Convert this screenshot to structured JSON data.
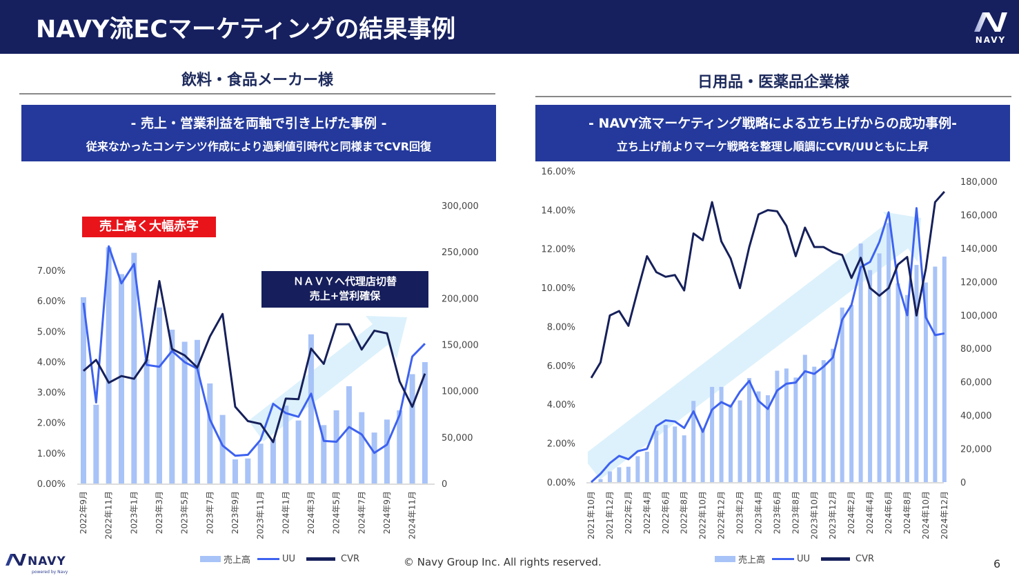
{
  "header": {
    "title": "NAVY流ECマーケティングの結果事例",
    "logo_text": "NAVY"
  },
  "left_panel": {
    "subtitle": "飲料・食品メーカー様",
    "band_title": "- 売上・営業利益を両軸で引き上げた事例 -",
    "band_text": "従来なかったコンテンツ作成により過剰値引時代と同様までCVR回復",
    "callout_red": "売上高く大幅赤字",
    "callout_navy_line1": "ＮＡＶＹへ代理店切替",
    "callout_navy_line2": "売上+営利確保"
  },
  "right_panel": {
    "subtitle": "日用品・医薬品企業様",
    "band_title": "- NAVY流マーケティング戦略による立ち上げからの成功事例-",
    "band_text": "立ち上げ前よりマーケ戦略を整理し順調にCVR/UUともに上昇"
  },
  "legend": {
    "sales": "売上高",
    "uu": "UU",
    "cvr": "CVR"
  },
  "footer": {
    "copyright": "© Navy Group Inc. All rights reserved.",
    "page": "6",
    "logo_text": "NAVY",
    "logo_sub": "powered by Navy"
  },
  "colors": {
    "header": "#16205f",
    "band": "#24399b",
    "bar": "#a8c3f7",
    "uu": "#3d62f0",
    "cvr": "#16205a",
    "arrow": "#d6eefc",
    "red": "#e8141a"
  },
  "chart_data": [
    {
      "type": "bar+line",
      "x_interval": "monthly",
      "x_tick_labels": [
        "2022年9月",
        "2022年11月",
        "2023年1月",
        "2023年3月",
        "2023年5月",
        "2023年7月",
        "2023年9月",
        "2023年11月",
        "2024年1月",
        "2024年3月",
        "2024年5月",
        "2024年7月",
        "2024年9月",
        "2024年11月"
      ],
      "y_left_ticks": [
        "0.00%",
        "1.00%",
        "2.00%",
        "3.00%",
        "4.00%",
        "5.00%",
        "6.00%",
        "7.00%"
      ],
      "y_right_ticks": [
        "0",
        "50,000",
        "100,000",
        "150,000",
        "200,000",
        "250,000",
        "300,000"
      ],
      "ylim_right": [
        0,
        300000
      ],
      "series": [
        {
          "name": "売上高",
          "kind": "bar",
          "axis": "right",
          "values": [
            201000,
            85000,
            255000,
            226000,
            249000,
            134000,
            190000,
            166000,
            153000,
            155000,
            108000,
            74000,
            26000,
            27000,
            43000,
            48000,
            84000,
            68000,
            161000,
            63000,
            79000,
            105000,
            77000,
            55000,
            69000,
            79000,
            118000,
            131000
          ]
        },
        {
          "name": "UU",
          "kind": "line",
          "axis": "right",
          "values": [
            195000,
            87500,
            256000,
            216000,
            237000,
            128000,
            126000,
            143000,
            131000,
            124000,
            69000,
            41000,
            30000,
            31000,
            47000,
            86000,
            76000,
            72000,
            97000,
            46000,
            45000,
            61000,
            53000,
            33000,
            42000,
            74000,
            137000,
            151000
          ]
        },
        {
          "name": "CVR",
          "kind": "line",
          "axis": "left",
          "unit": "%",
          "values": [
            3.7,
            4.06,
            3.31,
            3.53,
            3.44,
            4.04,
            6.65,
            4.42,
            4.21,
            3.81,
            4.83,
            5.57,
            2.52,
            2.05,
            1.96,
            1.36,
            2.79,
            2.77,
            4.43,
            3.93,
            5.23,
            5.23,
            4.4,
            5.02,
            4.93,
            3.35,
            2.52,
            3.61
          ]
        }
      ]
    },
    {
      "type": "bar+line",
      "x_interval": "monthly",
      "x_tick_labels": [
        "2021年10月",
        "2021年12月",
        "2022年2月",
        "2022年4月",
        "2022年6月",
        "2022年8月",
        "2022年10月",
        "2022年12月",
        "2023年2月",
        "2023年4月",
        "2023年6月",
        "2023年8月",
        "2023年10月",
        "2023年12月",
        "2024年2月",
        "2024年4月",
        "2024年6月",
        "2024年8月",
        "2024年10月",
        "2024年12月"
      ],
      "y_left_ticks": [
        "0.00%",
        "2.00%",
        "4.00%",
        "6.00%",
        "8.00%",
        "10.00%",
        "12.00%",
        "14.00%",
        "16.00%"
      ],
      "y_right_ticks": [
        "0",
        "20,000",
        "40,000",
        "60,000",
        "80,000",
        "100,000",
        "120,000",
        "140,000",
        "160,000",
        "180,000"
      ],
      "ylim_left": [
        0,
        16
      ],
      "ylim_right": [
        0,
        180000
      ],
      "series": [
        {
          "name": "売上高",
          "kind": "bar",
          "axis": "right",
          "values": [
            0,
            1800,
            6400,
            8900,
            9200,
            15500,
            18200,
            30800,
            34200,
            33300,
            28000,
            48600,
            32400,
            57000,
            57000,
            46500,
            48900,
            62300,
            54300,
            52000,
            66700,
            68000,
            62600,
            76200,
            69100,
            73000,
            79800,
            104500,
            106000,
            142800,
            126900,
            136900,
            155000,
            119000,
            112000,
            130000,
            119500,
            129000,
            135000
          ]
        },
        {
          "name": "UU",
          "kind": "line",
          "axis": "right",
          "values": [
            0,
            5000,
            11400,
            15700,
            13700,
            18500,
            19900,
            33500,
            37000,
            36300,
            32400,
            42400,
            30100,
            43400,
            47900,
            45200,
            54100,
            60600,
            48600,
            43800,
            54800,
            58900,
            59600,
            66400,
            64800,
            69100,
            74600,
            97200,
            106000,
            128700,
            131800,
            143700,
            161500,
            119000,
            99900,
            164000,
            98600,
            88000,
            89000
          ]
        },
        {
          "name": "CVR",
          "kind": "line",
          "axis": "left",
          "unit": "%",
          "values": [
            5.36,
            6.16,
            8.57,
            8.8,
            8.04,
            9.86,
            11.62,
            10.8,
            10.56,
            10.65,
            9.86,
            12.79,
            12.44,
            14.4,
            12.38,
            11.5,
            9.98,
            12.09,
            13.77,
            13.99,
            13.93,
            13.18,
            11.62,
            13.09,
            12.09,
            12.09,
            11.82,
            11.68,
            10.5,
            11.54,
            9.98,
            9.59,
            9.98,
            11.19,
            11.58,
            8.57,
            10.97,
            14.4,
            14.94
          ]
        }
      ]
    }
  ]
}
